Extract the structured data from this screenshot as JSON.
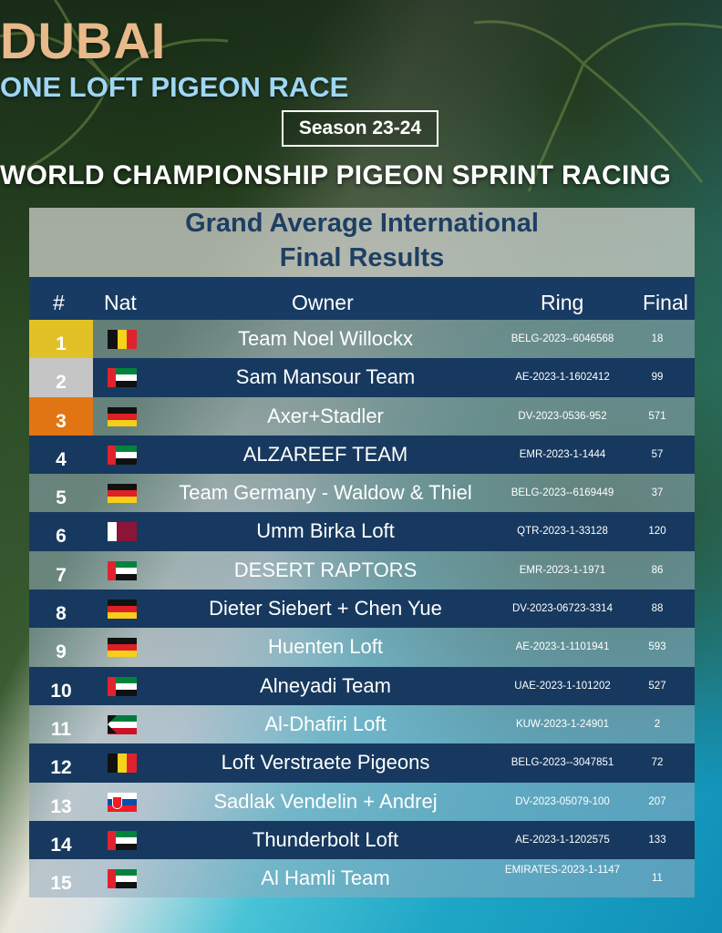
{
  "header": {
    "title": "DUBAI",
    "subtitle": "ONE LOFT PIGEON RACE",
    "season": "Season 23-24",
    "championship": "WORLD CHAMPIONSHIP PIGEON SPRINT RACING"
  },
  "panel": {
    "title_line1": "Grand Average International",
    "title_line2": "Final Results"
  },
  "table": {
    "columns": {
      "rank": "#",
      "nat": "Nat",
      "owner": "Owner",
      "ring": "Ring",
      "final": "Final"
    },
    "rows": [
      {
        "rank": "1",
        "flag": "belgium",
        "owner": "Team Noel Willockx",
        "ring": "BELG-2023--6046568",
        "final": "18"
      },
      {
        "rank": "2",
        "flag": "uae",
        "owner": "Sam Mansour Team",
        "ring": "AE-2023-1-1602412",
        "final": "99"
      },
      {
        "rank": "3",
        "flag": "germany",
        "owner": "Axer+Stadler",
        "ring": "DV-2023-0536-952",
        "final": "571"
      },
      {
        "rank": "4",
        "flag": "uae",
        "owner": "ALZAREEF TEAM",
        "ring": "EMR-2023-1-1444",
        "final": "57"
      },
      {
        "rank": "5",
        "flag": "germany",
        "owner": "Team Germany - Waldow & Thiel",
        "ring": "BELG-2023--6169449",
        "final": "37"
      },
      {
        "rank": "6",
        "flag": "qatar",
        "owner": "Umm Birka Loft",
        "ring": "QTR-2023-1-33128",
        "final": "120"
      },
      {
        "rank": "7",
        "flag": "uae",
        "owner": "DESERT RAPTORS",
        "ring": "EMR-2023-1-1971",
        "final": "86"
      },
      {
        "rank": "8",
        "flag": "germany",
        "owner": "Dieter Siebert + Chen Yue",
        "ring": "DV-2023-06723-3314",
        "final": "88"
      },
      {
        "rank": "9",
        "flag": "germany",
        "owner": "Huenten Loft",
        "ring": "AE-2023-1-1101941",
        "final": "593"
      },
      {
        "rank": "10",
        "flag": "uae",
        "owner": "Alneyadi Team",
        "ring": "UAE-2023-1-101202",
        "final": "527"
      },
      {
        "rank": "11",
        "flag": "kuwait",
        "owner": "Al-Dhafiri Loft",
        "ring": "KUW-2023-1-24901",
        "final": "2"
      },
      {
        "rank": "12",
        "flag": "belgium",
        "owner": "Loft Verstraete Pigeons",
        "ring": "BELG-2023--3047851",
        "final": "72"
      },
      {
        "rank": "13",
        "flag": "slovakia",
        "owner": "Sadlak Vendelin + Andrej",
        "ring": "DV-2023-05079-100",
        "final": "207"
      },
      {
        "rank": "14",
        "flag": "uae",
        "owner": "Thunderbolt Loft",
        "ring": "AE-2023-1-1202575",
        "final": "133"
      },
      {
        "rank": "15",
        "flag": "uae",
        "owner": "Al Hamli Team",
        "ring": "EMIRATES-2023-1-1147",
        "final": "11"
      }
    ]
  },
  "colors": {
    "gold": "#e2c126",
    "silver": "#c5c5c5",
    "bronze": "#e27513",
    "navy": "#17395f",
    "title_accent": "#e8b98a",
    "subtitle_accent": "#9fd6f4"
  }
}
